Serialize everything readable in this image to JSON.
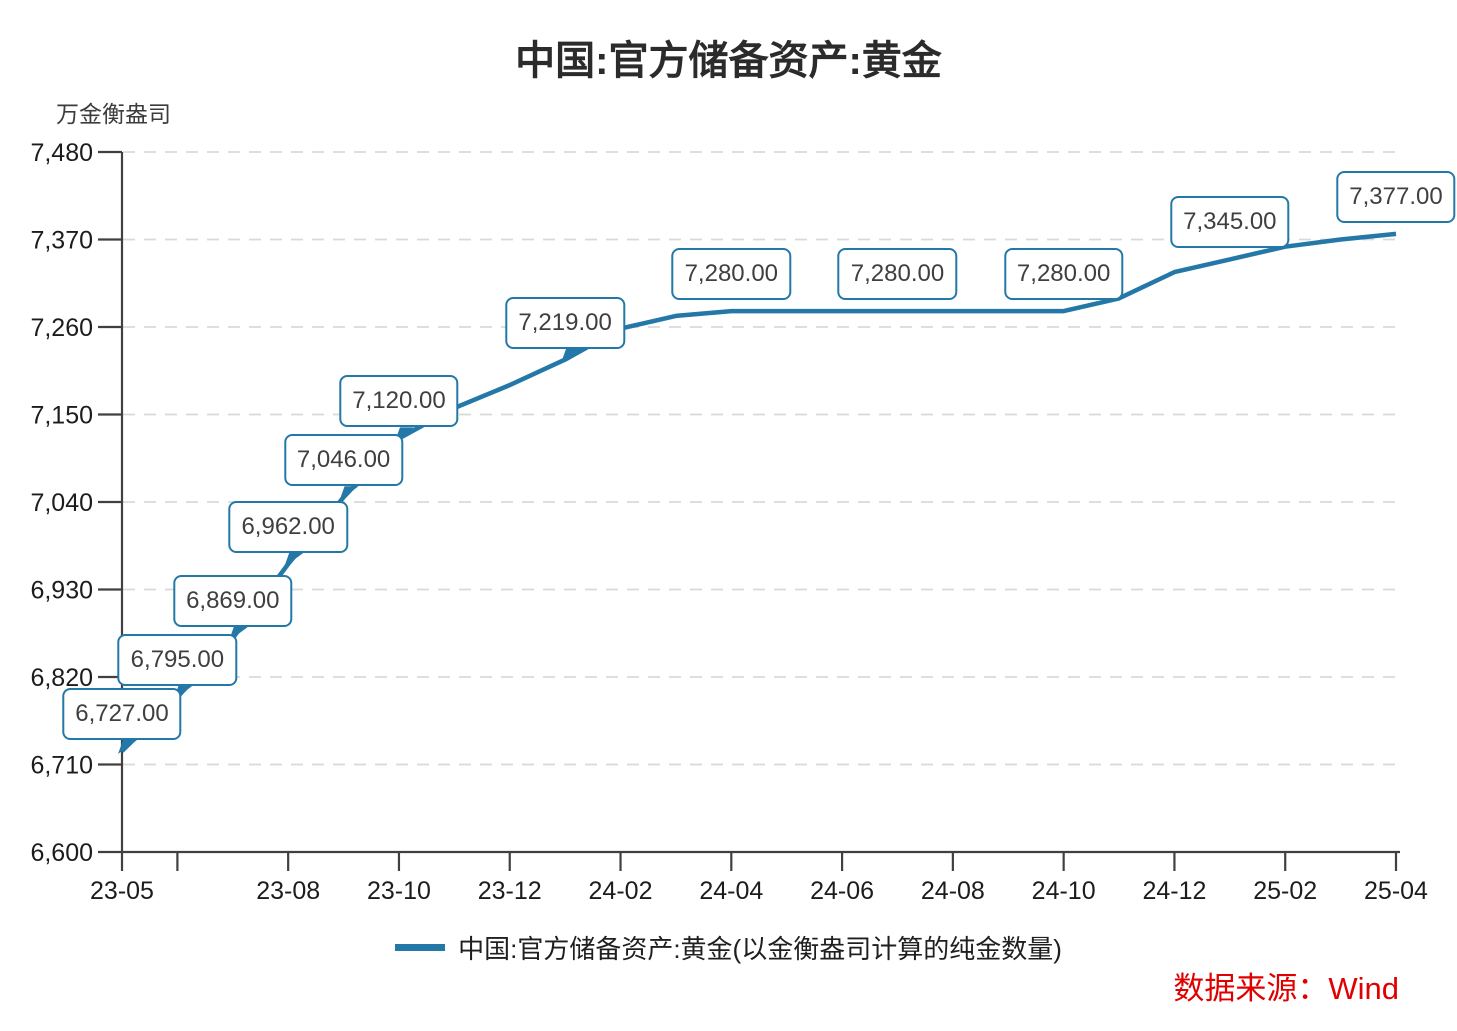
{
  "title": "中国:官方储备资产:黄金",
  "unit_label": "万金衡盎司",
  "legend_label": "中国:官方储备资产:黄金(以金衡盎司计算的纯金数量)",
  "source_note": "数据来源：Wind",
  "colors": {
    "line": "#2478A8",
    "callout_border": "#2478A8",
    "grid": "#D9D9D9",
    "axis": "#404040",
    "tick_text": "#1C1C1C",
    "title_text": "#2B2B2B",
    "source_text": "#E00000"
  },
  "chart_data": {
    "type": "line",
    "title": "中国:官方储备资产:黄金",
    "ylabel": "万金衡盎司",
    "legend_position": "bottom-center",
    "grid": "horizontal-dashed",
    "ylim": [
      6600,
      7480
    ],
    "x": [
      "23-05",
      "23-06",
      "23-07",
      "23-08",
      "23-09",
      "23-10",
      "23-11",
      "23-12",
      "24-01",
      "24-02",
      "24-03",
      "24-04",
      "24-05",
      "24-06",
      "24-07",
      "24-08",
      "24-09",
      "24-10",
      "24-11",
      "24-12",
      "25-01",
      "25-02",
      "25-03",
      "25-04"
    ],
    "series": [
      {
        "name": "中国:官方储备资产:黄金(以金衡盎司计算的纯金数量)",
        "values": [
          6727,
          6795,
          6869,
          6962,
          7046,
          7120,
          7158,
          7187,
          7219,
          7258,
          7274,
          7280,
          7280,
          7280,
          7280,
          7280,
          7280,
          7280,
          7296,
          7329,
          7345,
          7361,
          7370,
          7377
        ]
      }
    ],
    "yticks": [
      {
        "v": 6600,
        "label": "6,600"
      },
      {
        "v": 6710,
        "label": "6,710"
      },
      {
        "v": 6820,
        "label": "6,820"
      },
      {
        "v": 6930,
        "label": "6,930"
      },
      {
        "v": 7040,
        "label": "7,040"
      },
      {
        "v": 7150,
        "label": "7,150"
      },
      {
        "v": 7260,
        "label": "7,260"
      },
      {
        "v": 7370,
        "label": "7,370"
      },
      {
        "v": 7480,
        "label": "7,480"
      }
    ],
    "xticks": [
      {
        "i": 0,
        "label": "23-05"
      },
      {
        "i": 1,
        "label": ""
      },
      {
        "i": 3,
        "label": "23-08"
      },
      {
        "i": 5,
        "label": "23-10"
      },
      {
        "i": 7,
        "label": "23-12"
      },
      {
        "i": 9,
        "label": "24-02"
      },
      {
        "i": 11,
        "label": "24-04"
      },
      {
        "i": 13,
        "label": "24-06"
      },
      {
        "i": 15,
        "label": "24-08"
      },
      {
        "i": 17,
        "label": "24-10"
      },
      {
        "i": 19,
        "label": "24-12"
      },
      {
        "i": 21,
        "label": "25-02"
      },
      {
        "i": 23,
        "label": "25-04"
      }
    ],
    "data_labels": [
      {
        "i": 0,
        "text": "6,727.00",
        "tail": true
      },
      {
        "i": 1,
        "text": "6,795.00",
        "tail": true
      },
      {
        "i": 2,
        "text": "6,869.00",
        "tail": true
      },
      {
        "i": 3,
        "text": "6,962.00",
        "tail": true
      },
      {
        "i": 4,
        "text": "7,046.00",
        "tail": true
      },
      {
        "i": 5,
        "text": "7,120.00",
        "tail": true
      },
      {
        "i": 8,
        "text": "7,219.00",
        "tail": true
      },
      {
        "i": 11,
        "text": "7,280.00",
        "tail": false
      },
      {
        "i": 14,
        "text": "7,280.00",
        "tail": false
      },
      {
        "i": 17,
        "text": "7,280.00",
        "tail": false
      },
      {
        "i": 20,
        "text": "7,345.00",
        "tail": false
      },
      {
        "i": 23,
        "text": "7,377.00",
        "tail": false
      }
    ]
  }
}
